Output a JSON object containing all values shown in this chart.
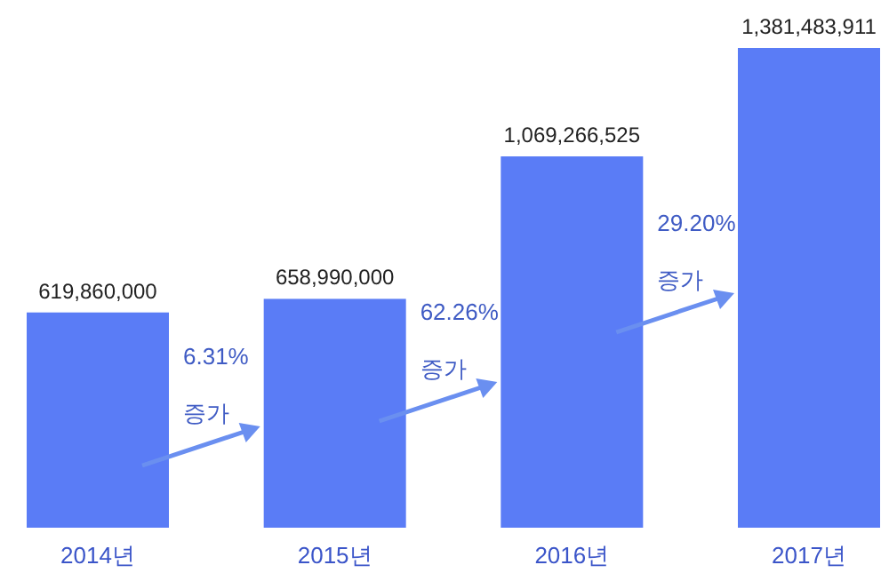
{
  "chart_data": {
    "type": "bar",
    "categories": [
      "2014년",
      "2015년",
      "2016년",
      "2017년"
    ],
    "values": [
      619860000,
      658990000,
      1069266525,
      1381483911
    ],
    "color": "#5a7cf6",
    "value_labels": [
      "619,860,000",
      "658,990,000",
      "1,069,266,525",
      "1,381,483,911"
    ],
    "annotations": [
      "6.31%",
      "증가",
      "62.26%",
      "증가",
      "29.20%",
      "증가"
    ]
  }
}
